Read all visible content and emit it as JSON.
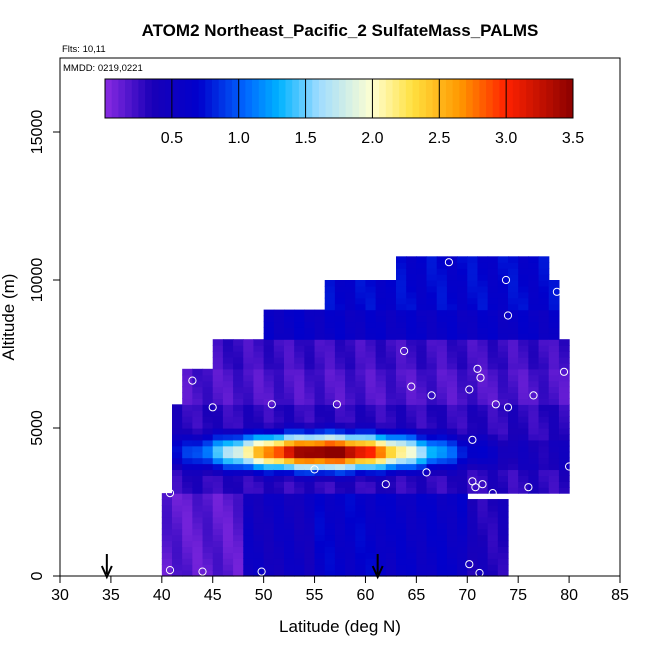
{
  "chart_data": {
    "type": "heatmap",
    "title": "ATOM2 Northeast_Pacific_2 SulfateMass_PALMS",
    "annotations": [
      "Flts: 10,11",
      "MMDD: 0219,0221"
    ],
    "xlabel": "Latitude (deg N)",
    "ylabel": "Altitude (m)",
    "xlim": [
      30,
      85
    ],
    "ylim": [
      0,
      17500
    ],
    "x_ticks": [
      30,
      35,
      40,
      45,
      50,
      55,
      60,
      65,
      70,
      75,
      80,
      85
    ],
    "y_ticks": [
      0,
      5000,
      10000,
      15000
    ],
    "colorbar": {
      "min": 0,
      "max": 3.5,
      "ticks": [
        0.5,
        1.0,
        1.5,
        2.0,
        2.5,
        3.0,
        3.5
      ],
      "tick_labels": [
        "0.5",
        "1.0",
        "1.5",
        "2.0",
        "2.5",
        "3.0",
        "3.5"
      ],
      "stops": [
        {
          "v": 0.0,
          "color": "#8a2be2"
        },
        {
          "v": 0.35,
          "color": "#1a00b8"
        },
        {
          "v": 0.7,
          "color": "#0000cc"
        },
        {
          "v": 1.05,
          "color": "#0066ff"
        },
        {
          "v": 1.3,
          "color": "#00b2ff"
        },
        {
          "v": 1.6,
          "color": "#9fdcff"
        },
        {
          "v": 2.0,
          "color": "#ffffd0"
        },
        {
          "v": 2.3,
          "color": "#ffe040"
        },
        {
          "v": 2.65,
          "color": "#ff9900"
        },
        {
          "v": 3.0,
          "color": "#ff2200"
        },
        {
          "v": 3.5,
          "color": "#8b0000"
        }
      ]
    },
    "regions": [
      {
        "x": [
          40.5,
          48
        ],
        "y": [
          0,
          2800
        ],
        "value": 0.15
      },
      {
        "x": [
          48,
          55
        ],
        "y": [
          0,
          2800
        ],
        "value": 0.5
      },
      {
        "x": [
          55,
          62
        ],
        "y": [
          0,
          2800
        ],
        "value": 0.65
      },
      {
        "x": [
          62,
          70
        ],
        "y": [
          0,
          2800
        ],
        "value": 0.6
      },
      {
        "x": [
          70,
          74
        ],
        "y": [
          0,
          2600
        ],
        "value": 0.35
      },
      {
        "x": [
          41,
          80
        ],
        "y": [
          3600,
          4600
        ],
        "value": 0.4
      },
      {
        "x": [
          42,
          80
        ],
        "y": [
          5800,
          7000
        ],
        "value": 0.2
      },
      {
        "x": [
          45,
          80
        ],
        "y": [
          7000,
          8000
        ],
        "value": 0.25
      },
      {
        "x": [
          50,
          79
        ],
        "y": [
          8000,
          9000
        ],
        "value": 0.6
      },
      {
        "x": [
          56,
          79
        ],
        "y": [
          9000,
          10000
        ],
        "value": 0.7
      },
      {
        "x": [
          63,
          78
        ],
        "y": [
          10000,
          10800
        ],
        "value": 0.7
      }
    ],
    "layer": {
      "x": [
        42,
        70
      ],
      "center_alt": 4200,
      "peak_lat": 56,
      "peak_value": 3.3
    },
    "observations": [
      {
        "lat": 40.8,
        "alt": 200
      },
      {
        "lat": 44,
        "alt": 150
      },
      {
        "lat": 49.8,
        "alt": 150
      },
      {
        "lat": 70.2,
        "alt": 400
      },
      {
        "lat": 71.2,
        "alt": 100
      },
      {
        "lat": 40.8,
        "alt": 2800
      },
      {
        "lat": 55,
        "alt": 3600
      },
      {
        "lat": 62,
        "alt": 3100
      },
      {
        "lat": 66,
        "alt": 3500
      },
      {
        "lat": 70.5,
        "alt": 3200
      },
      {
        "lat": 70.8,
        "alt": 3000
      },
      {
        "lat": 71.5,
        "alt": 3100
      },
      {
        "lat": 72.5,
        "alt": 2800
      },
      {
        "lat": 76,
        "alt": 3000
      },
      {
        "lat": 80,
        "alt": 3700
      },
      {
        "lat": 70.5,
        "alt": 4600
      },
      {
        "lat": 45,
        "alt": 5700
      },
      {
        "lat": 50.8,
        "alt": 5800
      },
      {
        "lat": 57.2,
        "alt": 5800
      },
      {
        "lat": 43,
        "alt": 6600
      },
      {
        "lat": 64.5,
        "alt": 6400
      },
      {
        "lat": 66.5,
        "alt": 6100
      },
      {
        "lat": 70.2,
        "alt": 6300
      },
      {
        "lat": 71,
        "alt": 7000
      },
      {
        "lat": 71.3,
        "alt": 6700
      },
      {
        "lat": 72.8,
        "alt": 5800
      },
      {
        "lat": 74,
        "alt": 5700
      },
      {
        "lat": 76.5,
        "alt": 6100
      },
      {
        "lat": 79.5,
        "alt": 6900
      },
      {
        "lat": 63.8,
        "alt": 7600
      },
      {
        "lat": 74,
        "alt": 8800
      },
      {
        "lat": 78.8,
        "alt": 9600
      },
      {
        "lat": 73.8,
        "alt": 10000
      },
      {
        "lat": 68.2,
        "alt": 10600
      }
    ],
    "arrows": [
      {
        "lat": 34.6
      },
      {
        "lat": 61.2
      }
    ]
  }
}
